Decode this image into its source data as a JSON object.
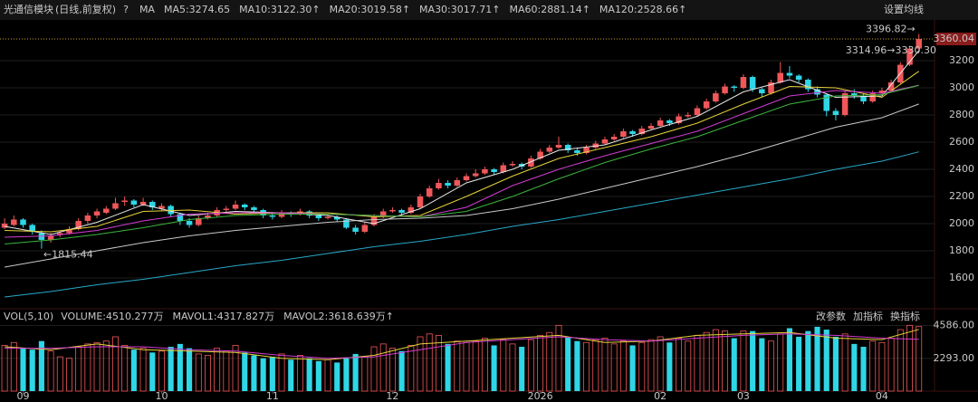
{
  "chart_data": {
    "type": "candlestick",
    "title": "光通信模块",
    "subtitle": "(日线,前复权)",
    "help": "?",
    "ma_label": "MA",
    "settings": "设置均线",
    "up_color": "#f0575a",
    "down_color": "#2fd6e6",
    "xlim": [
      -0.5,
      100.5
    ],
    "ylim": [
      1393,
      3447
    ],
    "yticks": [
      1600,
      1800,
      2000,
      2200,
      2400,
      2600,
      2800,
      3000,
      3200
    ],
    "xticks": [
      {
        "value": 2,
        "label": "09"
      },
      {
        "value": 17,
        "label": "10"
      },
      {
        "value": 29,
        "label": "11"
      },
      {
        "value": 42,
        "label": "12"
      },
      {
        "value": 58,
        "label": "2026"
      },
      {
        "value": 71,
        "label": "02"
      },
      {
        "value": 80,
        "label": "03"
      },
      {
        "value": 95,
        "label": "04"
      }
    ],
    "last_price": 3360.04,
    "high_label": "3396.82→",
    "prev_label": "3314.96→3330.30",
    "low_label": "←1815.44",
    "candles": [
      [
        1970,
        2040,
        1960,
        2000
      ],
      [
        1990,
        2060,
        1980,
        2030
      ],
      [
        2030,
        2040,
        1970,
        1990
      ],
      [
        1990,
        2000,
        1920,
        1940
      ],
      [
        1930,
        1950,
        1815.44,
        1880
      ],
      [
        1880,
        1930,
        1860,
        1910
      ],
      [
        1920,
        1950,
        1900,
        1930
      ],
      [
        1930,
        1980,
        1920,
        1960
      ],
      [
        1960,
        2040,
        1950,
        2020
      ],
      [
        2020,
        2080,
        2000,
        2060
      ],
      [
        2060,
        2110,
        2040,
        2090
      ],
      [
        2080,
        2130,
        2070,
        2110
      ],
      [
        2110,
        2190,
        2100,
        2150
      ],
      [
        2160,
        2200,
        2130,
        2170
      ],
      [
        2170,
        2180,
        2120,
        2140
      ],
      [
        2140,
        2190,
        2130,
        2160
      ],
      [
        2160,
        2170,
        2100,
        2120
      ],
      [
        2110,
        2150,
        2090,
        2130
      ],
      [
        2130,
        2140,
        2050,
        2070
      ],
      [
        2070,
        2080,
        1990,
        2020
      ],
      [
        2020,
        2040,
        1970,
        1990
      ],
      [
        1990,
        2060,
        1980,
        2040
      ],
      [
        2040,
        2080,
        2030,
        2060
      ],
      [
        2060,
        2120,
        2050,
        2100
      ],
      [
        2100,
        2130,
        2080,
        2110
      ],
      [
        2110,
        2170,
        2100,
        2140
      ],
      [
        2140,
        2150,
        2100,
        2120
      ],
      [
        2120,
        2130,
        2080,
        2100
      ],
      [
        2100,
        2110,
        2040,
        2060
      ],
      [
        2060,
        2080,
        2030,
        2050
      ],
      [
        2050,
        2100,
        2040,
        2080
      ],
      [
        2080,
        2090,
        2050,
        2070
      ],
      [
        2070,
        2110,
        2060,
        2090
      ],
      [
        2090,
        2100,
        2040,
        2060
      ],
      [
        2060,
        2070,
        2020,
        2040
      ],
      [
        2040,
        2070,
        2030,
        2050
      ],
      [
        2050,
        2060,
        2010,
        2030
      ],
      [
        2030,
        2040,
        1960,
        1970
      ],
      [
        1970,
        1990,
        1920,
        1940
      ],
      [
        1940,
        2010,
        1930,
        1990
      ],
      [
        1990,
        2070,
        1980,
        2050
      ],
      [
        2050,
        2110,
        2040,
        2090
      ],
      [
        2090,
        2120,
        2080,
        2100
      ],
      [
        2100,
        2110,
        2060,
        2080
      ],
      [
        2080,
        2140,
        2070,
        2120
      ],
      [
        2120,
        2220,
        2110,
        2200
      ],
      [
        2200,
        2280,
        2190,
        2260
      ],
      [
        2260,
        2330,
        2250,
        2300
      ],
      [
        2300,
        2320,
        2260,
        2280
      ],
      [
        2280,
        2340,
        2270,
        2320
      ],
      [
        2320,
        2370,
        2310,
        2350
      ],
      [
        2350,
        2400,
        2340,
        2370
      ],
      [
        2370,
        2420,
        2360,
        2400
      ],
      [
        2400,
        2410,
        2360,
        2380
      ],
      [
        2380,
        2450,
        2370,
        2430
      ],
      [
        2430,
        2460,
        2420,
        2440
      ],
      [
        2440,
        2450,
        2400,
        2420
      ],
      [
        2420,
        2500,
        2410,
        2480
      ],
      [
        2480,
        2550,
        2470,
        2530
      ],
      [
        2530,
        2580,
        2520,
        2560
      ],
      [
        2560,
        2640,
        2550,
        2580
      ],
      [
        2580,
        2590,
        2520,
        2540
      ],
      [
        2540,
        2560,
        2500,
        2520
      ],
      [
        2520,
        2580,
        2510,
        2560
      ],
      [
        2560,
        2610,
        2550,
        2590
      ],
      [
        2590,
        2640,
        2580,
        2620
      ],
      [
        2620,
        2660,
        2610,
        2640
      ],
      [
        2640,
        2700,
        2630,
        2680
      ],
      [
        2680,
        2690,
        2640,
        2660
      ],
      [
        2660,
        2720,
        2650,
        2700
      ],
      [
        2700,
        2740,
        2690,
        2720
      ],
      [
        2720,
        2780,
        2710,
        2760
      ],
      [
        2760,
        2770,
        2720,
        2740
      ],
      [
        2740,
        2810,
        2730,
        2790
      ],
      [
        2790,
        2820,
        2780,
        2800
      ],
      [
        2800,
        2870,
        2790,
        2850
      ],
      [
        2850,
        2920,
        2840,
        2900
      ],
      [
        2900,
        2980,
        2890,
        2960
      ],
      [
        2960,
        3030,
        2950,
        3010
      ],
      [
        3010,
        3020,
        2970,
        3000
      ],
      [
        3000,
        3100,
        2990,
        3080
      ],
      [
        3080,
        3090,
        2970,
        2990
      ],
      [
        2990,
        3000,
        2930,
        2960
      ],
      [
        2960,
        3060,
        2950,
        3040
      ],
      [
        3040,
        3190,
        3030,
        3110
      ],
      [
        3110,
        3160,
        3070,
        3090
      ],
      [
        3090,
        3100,
        3040,
        3060
      ],
      [
        3060,
        3070,
        2970,
        2990
      ],
      [
        2990,
        3010,
        2930,
        2950
      ],
      [
        2950,
        2960,
        2790,
        2830
      ],
      [
        2830,
        2850,
        2760,
        2800
      ],
      [
        2800,
        2980,
        2790,
        2960
      ],
      [
        2960,
        2990,
        2920,
        2940
      ],
      [
        2940,
        2960,
        2880,
        2900
      ],
      [
        2900,
        2980,
        2890,
        2960
      ],
      [
        2960,
        3000,
        2950,
        2980
      ],
      [
        2980,
        3060,
        2970,
        3040
      ],
      [
        3040,
        3190,
        3030,
        3170
      ],
      [
        3170,
        3310,
        3160,
        3290
      ],
      [
        3290,
        3396.82,
        3280,
        3360.04
      ]
    ],
    "ma_x": [
      0,
      5,
      10,
      15,
      20,
      25,
      30,
      35,
      40,
      45,
      50,
      55,
      60,
      65,
      70,
      75,
      80,
      85,
      90,
      95,
      99
    ],
    "ma": [
      {
        "name": "MA5:3274.65",
        "color": "#e8e8e8",
        "values": [
          1980,
          1920,
          2010,
          2140,
          2060,
          2090,
          2080,
          2060,
          2000,
          2110,
          2300,
          2400,
          2540,
          2580,
          2690,
          2790,
          2970,
          3060,
          2930,
          2940,
          3274.65
        ]
      },
      {
        "name": "MA10:3122.30↑",
        "color": "#e6d23a",
        "values": [
          1950,
          1940,
          1980,
          2090,
          2100,
          2070,
          2080,
          2080,
          2050,
          2060,
          2200,
          2350,
          2480,
          2560,
          2640,
          2740,
          2880,
          3010,
          3000,
          2930,
          3122.3
        ]
      },
      {
        "name": "MA20:3019.58↑",
        "color": "#d23cd2",
        "values": [
          1900,
          1910,
          1950,
          2020,
          2070,
          2080,
          2080,
          2070,
          2060,
          2050,
          2120,
          2280,
          2400,
          2500,
          2590,
          2680,
          2810,
          2940,
          2980,
          2960,
          3019.58
        ]
      },
      {
        "name": "MA30:3017.71↑",
        "color": "#3cb43c",
        "values": [
          1850,
          1880,
          1920,
          1970,
          2030,
          2060,
          2070,
          2070,
          2060,
          2050,
          2090,
          2200,
          2330,
          2450,
          2550,
          2640,
          2760,
          2880,
          2940,
          2950,
          3017.71
        ]
      },
      {
        "name": "MA60:2881.14↑",
        "color": "#c8c8c8",
        "values": [
          1680,
          1740,
          1800,
          1860,
          1910,
          1950,
          1980,
          2010,
          2030,
          2040,
          2060,
          2110,
          2180,
          2260,
          2340,
          2420,
          2510,
          2610,
          2710,
          2780,
          2881.14
        ]
      },
      {
        "name": "MA120:2528.66↑",
        "color": "#28a8c8",
        "values": [
          1460,
          1500,
          1550,
          1590,
          1640,
          1690,
          1730,
          1780,
          1830,
          1870,
          1920,
          1980,
          2030,
          2090,
          2150,
          2210,
          2270,
          2330,
          2400,
          2460,
          2528.66
        ]
      }
    ],
    "volume": {
      "title": "VOL(5,10)",
      "legend": "VOLUME:4510.277万",
      "ylim": [
        0,
        5570
      ],
      "yticks": [
        {
          "value": 2293,
          "label": "2293.00"
        },
        {
          "value": 4586,
          "label": "4586.00"
        }
      ],
      "values": [
        3200,
        3400,
        3000,
        2900,
        3500,
        2800,
        2400,
        2300,
        3100,
        3300,
        3400,
        3500,
        3800,
        3200,
        2900,
        3000,
        2700,
        2800,
        3100,
        3300,
        3000,
        2600,
        2500,
        3000,
        2800,
        3200,
        2700,
        2500,
        2300,
        2400,
        2600,
        2200,
        2500,
        2300,
        2100,
        2200,
        2000,
        2300,
        2600,
        2400,
        3100,
        3300,
        3000,
        2800,
        3200,
        3800,
        4000,
        3900,
        3300,
        3500,
        3400,
        3500,
        3700,
        3200,
        3600,
        3300,
        3100,
        3600,
        3900,
        4100,
        4600,
        3800,
        3500,
        3400,
        3600,
        3700,
        3300,
        3500,
        3200,
        3400,
        3600,
        3800,
        3400,
        3700,
        3500,
        3900,
        4100,
        4300,
        4200,
        3700,
        4200,
        4200,
        3700,
        3500,
        4000,
        4400,
        3800,
        4200,
        4500,
        4300,
        3800,
        4000,
        3300,
        3100,
        3500,
        3400,
        3700,
        4300,
        4600,
        4510.277
      ],
      "lines": [
        {
          "name": "MAVOL1:4317.827万",
          "color": "#e6d23a",
          "values": [
            3100,
            2900,
            3300,
            2900,
            2800,
            2700,
            2300,
            2200,
            2500,
            3300,
            3500,
            3700,
            3900,
            3400,
            3500,
            3900,
            4000,
            4100,
            3700,
            3600,
            4317.827
          ]
        },
        {
          "name": "MAVOL2:3618.639万↑",
          "color": "#d23cd2",
          "values": [
            3000,
            3000,
            3100,
            3100,
            2900,
            2800,
            2500,
            2300,
            2400,
            2900,
            3400,
            3600,
            3800,
            3600,
            3500,
            3700,
            3900,
            4000,
            3900,
            3700,
            3618.639
          ]
        }
      ],
      "buttons": [
        "改参数",
        "加指标",
        "换指标"
      ]
    }
  }
}
